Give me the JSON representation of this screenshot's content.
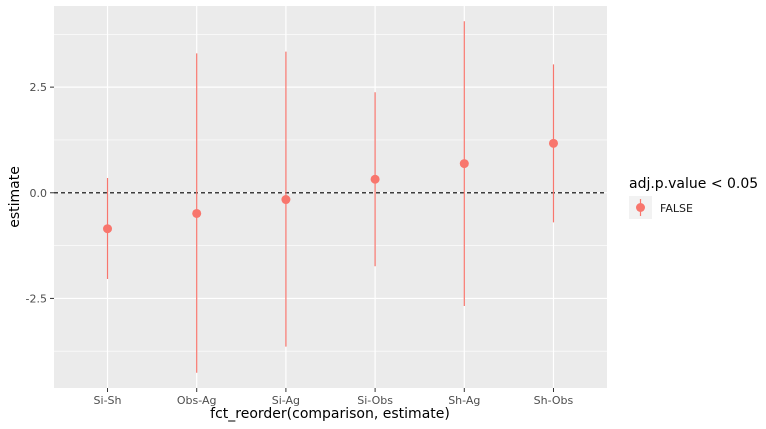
{
  "chart_data": {
    "type": "scatter",
    "subtype": "pointrange",
    "xlabel": "fct_reorder(comparison, estimate)",
    "ylabel": "estimate",
    "categories": [
      "Si-Sh",
      "Obs-Ag",
      "Si-Ag",
      "Si-Obs",
      "Sh-Ag",
      "Sh-Obs"
    ],
    "series": [
      {
        "name": "FALSE",
        "estimate": [
          -0.85,
          -0.49,
          -0.16,
          0.32,
          0.69,
          1.17
        ],
        "conf_low": [
          -2.04,
          -4.26,
          -3.64,
          -1.74,
          -2.68,
          -0.7
        ],
        "conf_high": [
          0.35,
          3.3,
          3.34,
          2.38,
          4.06,
          3.04
        ]
      }
    ],
    "ylim": [
      -4.62,
      4.42
    ],
    "yticks": [
      -2.5,
      0.0,
      2.5
    ],
    "ytick_labels": [
      "-2.5",
      "0.0",
      "2.5"
    ],
    "reference_line": {
      "y": 0,
      "style": "dashed"
    },
    "grid": true,
    "legend": {
      "title": "adj.p.value < 0.05",
      "entries": [
        "FALSE"
      ],
      "position": "right"
    },
    "colors": {
      "point": "#F8766D",
      "panel": "#EBEBEB",
      "grid": "#FFFFFF",
      "refline": "#000000"
    }
  }
}
